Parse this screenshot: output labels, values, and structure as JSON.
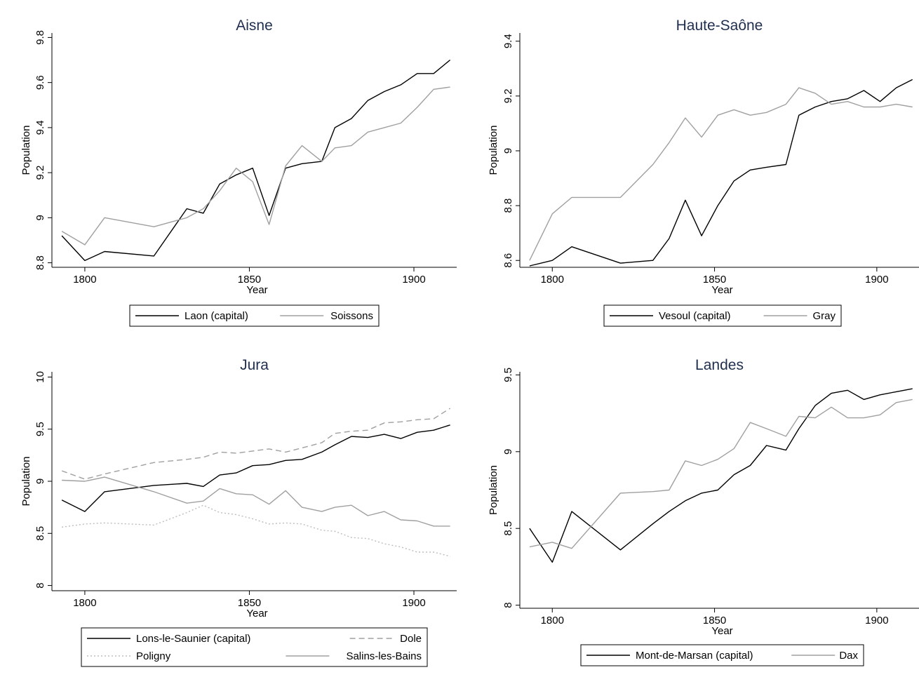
{
  "chart_data": [
    {
      "type": "line",
      "title": "Aisne",
      "xlabel": "Year",
      "ylabel": "Population",
      "xlim": [
        1790,
        1913
      ],
      "ylim": [
        8.78,
        9.82
      ],
      "xticks": [
        "1800",
        "1850",
        "1900"
      ],
      "yticks": [
        "8.8",
        "9",
        "9.2",
        "9.4",
        "9.6",
        "9.8"
      ],
      "legend": {
        "rows": [
          [
            "Laon (capital)",
            "Soissons"
          ]
        ]
      },
      "series": [
        {
          "name": "Laon (capital)",
          "color": "#000000",
          "dash": "solid",
          "x": [
            1793,
            1800,
            1806,
            1821,
            1831,
            1836,
            1841,
            1846,
            1851,
            1856,
            1861,
            1866,
            1872,
            1876,
            1881,
            1886,
            1891,
            1896,
            1901,
            1906,
            1911
          ],
          "y": [
            8.92,
            8.81,
            8.85,
            8.83,
            9.04,
            9.02,
            9.15,
            9.19,
            9.22,
            9.01,
            9.22,
            9.24,
            9.25,
            9.4,
            9.44,
            9.52,
            9.56,
            9.59,
            9.64,
            9.64,
            9.7
          ]
        },
        {
          "name": "Soissons",
          "color": "#a0a0a0",
          "dash": "solid",
          "x": [
            1793,
            1800,
            1806,
            1821,
            1831,
            1836,
            1841,
            1846,
            1851,
            1856,
            1861,
            1866,
            1872,
            1876,
            1881,
            1886,
            1891,
            1896,
            1901,
            1906,
            1911
          ],
          "y": [
            8.94,
            8.88,
            9.0,
            8.96,
            9.0,
            9.04,
            9.12,
            9.22,
            9.16,
            8.97,
            9.23,
            9.32,
            9.25,
            9.31,
            9.32,
            9.38,
            9.4,
            9.42,
            9.49,
            9.57,
            9.58
          ]
        }
      ]
    },
    {
      "type": "line",
      "title": "Haute-Saône",
      "xlabel": "Year",
      "ylabel": "Population",
      "xlim": [
        1790,
        1913
      ],
      "ylim": [
        8.575,
        9.43
      ],
      "xticks": [
        "1800",
        "1850",
        "1900"
      ],
      "yticks": [
        "8.6",
        "8.8",
        "9",
        "9.2",
        "9.4"
      ],
      "legend": {
        "rows": [
          [
            "Vesoul (capital)",
            "Gray"
          ]
        ]
      },
      "series": [
        {
          "name": "Vesoul (capital)",
          "color": "#000000",
          "dash": "solid",
          "x": [
            1793,
            1800,
            1806,
            1821,
            1831,
            1836,
            1841,
            1846,
            1851,
            1856,
            1861,
            1866,
            1872,
            1876,
            1881,
            1886,
            1891,
            1896,
            1901,
            1906,
            1911
          ],
          "y": [
            8.58,
            8.6,
            8.65,
            8.59,
            8.6,
            8.68,
            8.82,
            8.69,
            8.8,
            8.89,
            8.93,
            8.94,
            8.95,
            9.13,
            9.16,
            9.18,
            9.19,
            9.22,
            9.18,
            9.23,
            9.26
          ]
        },
        {
          "name": "Gray",
          "color": "#a0a0a0",
          "dash": "solid",
          "x": [
            1793,
            1800,
            1806,
            1821,
            1831,
            1836,
            1841,
            1846,
            1851,
            1856,
            1861,
            1866,
            1872,
            1876,
            1881,
            1886,
            1891,
            1896,
            1901,
            1906,
            1911
          ],
          "y": [
            8.6,
            8.77,
            8.83,
            8.83,
            8.95,
            9.03,
            9.12,
            9.05,
            9.13,
            9.15,
            9.13,
            9.14,
            9.17,
            9.23,
            9.21,
            9.17,
            9.18,
            9.16,
            9.16,
            9.17,
            9.16
          ]
        }
      ]
    },
    {
      "type": "line",
      "title": "Jura",
      "xlabel": "Year",
      "ylabel": "Population",
      "xlim": [
        1790,
        1913
      ],
      "ylim": [
        7.95,
        10.05
      ],
      "xticks": [
        "1800",
        "1850",
        "1900"
      ],
      "yticks": [
        "8",
        "8.5",
        "9",
        "9.5",
        "10"
      ],
      "legend": {
        "rows": [
          [
            "Lons-le-Saunier (capital)",
            "Dole"
          ],
          [
            "Poligny",
            "Salins-les-Bains"
          ]
        ]
      },
      "series": [
        {
          "name": "Lons-le-Saunier (capital)",
          "color": "#000000",
          "dash": "solid",
          "x": [
            1793,
            1800,
            1806,
            1821,
            1831,
            1836,
            1841,
            1846,
            1851,
            1856,
            1861,
            1866,
            1872,
            1876,
            1881,
            1886,
            1891,
            1896,
            1901,
            1906,
            1911
          ],
          "y": [
            8.82,
            8.71,
            8.9,
            8.96,
            8.98,
            8.95,
            9.06,
            9.08,
            9.15,
            9.16,
            9.2,
            9.21,
            9.28,
            9.35,
            9.43,
            9.42,
            9.45,
            9.41,
            9.47,
            9.49,
            9.54
          ]
        },
        {
          "name": "Dole",
          "color": "#a0a0a0",
          "dash": "dashed",
          "x": [
            1793,
            1800,
            1806,
            1821,
            1831,
            1836,
            1841,
            1846,
            1851,
            1856,
            1861,
            1866,
            1872,
            1876,
            1881,
            1886,
            1891,
            1896,
            1901,
            1906,
            1911
          ],
          "y": [
            9.1,
            9.02,
            9.07,
            9.18,
            9.21,
            9.23,
            9.28,
            9.27,
            9.29,
            9.31,
            9.28,
            9.32,
            9.37,
            9.46,
            9.48,
            9.49,
            9.56,
            9.57,
            9.59,
            9.6,
            9.7
          ]
        },
        {
          "name": "Poligny",
          "color": "#bdbdbd",
          "dash": "dotted",
          "x": [
            1793,
            1800,
            1806,
            1821,
            1831,
            1836,
            1841,
            1846,
            1851,
            1856,
            1861,
            1866,
            1872,
            1876,
            1881,
            1886,
            1891,
            1896,
            1901,
            1906,
            1911
          ],
          "y": [
            8.56,
            8.59,
            8.6,
            8.58,
            8.7,
            8.77,
            8.7,
            8.68,
            8.64,
            8.59,
            8.6,
            8.59,
            8.53,
            8.52,
            8.46,
            8.45,
            8.4,
            8.37,
            8.32,
            8.32,
            8.28
          ]
        },
        {
          "name": "Salins-les-Bains",
          "color": "#a0a0a0",
          "dash": "solid",
          "x": [
            1793,
            1800,
            1806,
            1821,
            1831,
            1836,
            1841,
            1846,
            1851,
            1856,
            1861,
            1866,
            1872,
            1876,
            1881,
            1886,
            1891,
            1896,
            1901,
            1906,
            1911
          ],
          "y": [
            9.01,
            9.0,
            9.04,
            8.9,
            8.79,
            8.81,
            8.93,
            8.88,
            8.87,
            8.78,
            8.91,
            8.75,
            8.71,
            8.75,
            8.77,
            8.67,
            8.71,
            8.63,
            8.62,
            8.57,
            8.57
          ]
        }
      ]
    },
    {
      "type": "line",
      "title": "Landes",
      "xlabel": "Year",
      "ylabel": "Population",
      "xlim": [
        1790,
        1913
      ],
      "ylim": [
        7.98,
        9.52
      ],
      "xticks": [
        "1800",
        "1850",
        "1900"
      ],
      "yticks": [
        "8",
        "8.5",
        "9",
        "9.5"
      ],
      "legend": {
        "rows": [
          [
            "Mont-de-Marsan (capital)",
            "Dax"
          ]
        ]
      },
      "series": [
        {
          "name": "Mont-de-Marsan (capital)",
          "color": "#000000",
          "dash": "solid",
          "x": [
            1793,
            1800,
            1806,
            1821,
            1831,
            1836,
            1841,
            1846,
            1851,
            1856,
            1861,
            1866,
            1872,
            1876,
            1881,
            1886,
            1891,
            1896,
            1901,
            1906,
            1911
          ],
          "y": [
            8.5,
            8.28,
            8.61,
            8.36,
            8.53,
            8.61,
            8.68,
            8.73,
            8.75,
            8.85,
            8.91,
            9.04,
            9.01,
            9.15,
            9.3,
            9.38,
            9.4,
            9.34,
            9.37,
            9.39,
            9.41
          ]
        },
        {
          "name": "Dax",
          "color": "#a0a0a0",
          "dash": "solid",
          "x": [
            1793,
            1800,
            1806,
            1821,
            1831,
            1836,
            1841,
            1846,
            1851,
            1856,
            1861,
            1866,
            1872,
            1876,
            1881,
            1886,
            1891,
            1896,
            1901,
            1906,
            1911
          ],
          "y": [
            8.38,
            8.41,
            8.37,
            8.73,
            8.74,
            8.75,
            8.94,
            8.91,
            8.95,
            9.02,
            9.19,
            9.15,
            9.1,
            9.23,
            9.22,
            9.29,
            9.22,
            9.22,
            9.24,
            9.32,
            9.34
          ]
        }
      ]
    }
  ]
}
